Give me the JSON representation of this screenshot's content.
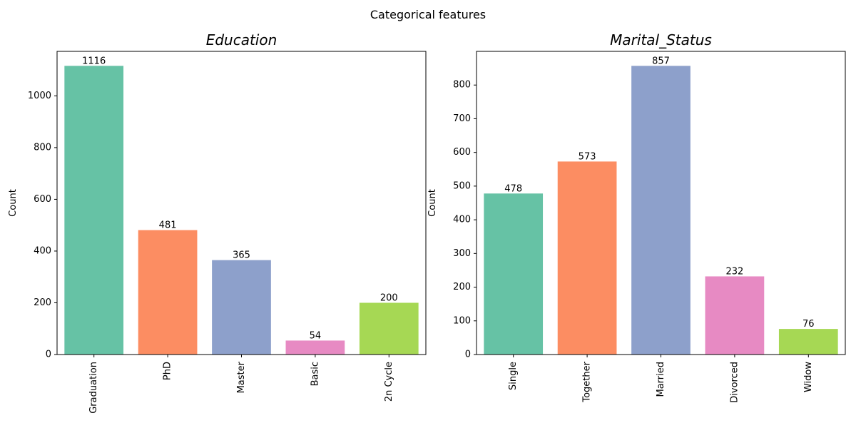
{
  "figure": {
    "suptitle": "Categorical features"
  },
  "chart_data": [
    {
      "type": "bar",
      "title": "Education",
      "xlabel": "",
      "ylabel": "Count",
      "categories": [
        "Graduation",
        "PhD",
        "Master",
        "Basic",
        "2n Cycle"
      ],
      "values": [
        1116,
        481,
        365,
        54,
        200
      ],
      "data_labels": [
        "1116",
        "481",
        "365",
        "54",
        "200"
      ],
      "ylim": [
        0,
        1172
      ],
      "yticks": [
        0,
        200,
        400,
        600,
        800,
        1000
      ],
      "colors": [
        "#66c2a5",
        "#fc8d62",
        "#8da0cb",
        "#e78ac3",
        "#a6d854"
      ],
      "grid": false
    },
    {
      "type": "bar",
      "title": "Marital_Status",
      "xlabel": "",
      "ylabel": "Count",
      "categories": [
        "Single",
        "Together",
        "Married",
        "Divorced",
        "Widow"
      ],
      "values": [
        478,
        573,
        857,
        232,
        76
      ],
      "data_labels": [
        "478",
        "573",
        "857",
        "232",
        "76"
      ],
      "ylim": [
        0,
        900
      ],
      "yticks": [
        0,
        100,
        200,
        300,
        400,
        500,
        600,
        700,
        800
      ],
      "colors": [
        "#66c2a5",
        "#fc8d62",
        "#8da0cb",
        "#e78ac3",
        "#a6d854"
      ],
      "grid": false
    }
  ]
}
